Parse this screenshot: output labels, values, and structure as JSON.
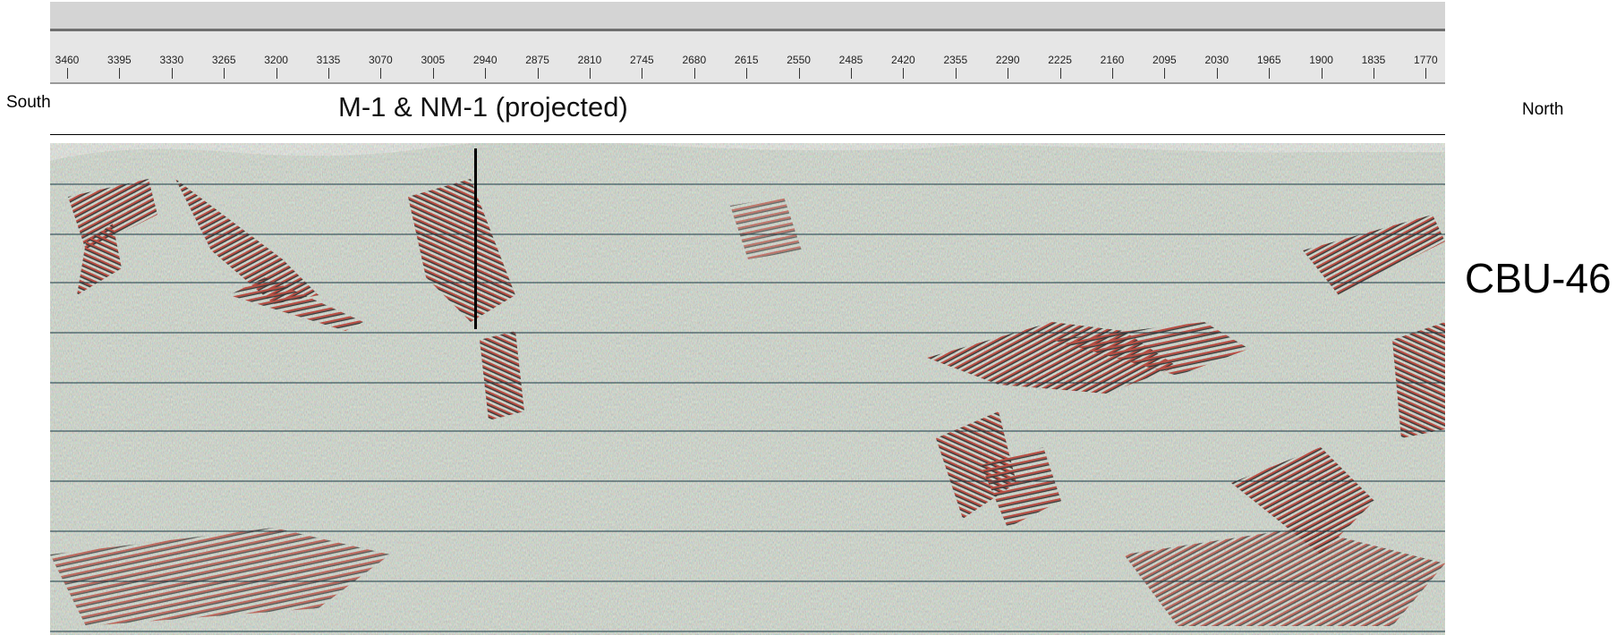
{
  "section": {
    "left_label": "South",
    "right_label": "North",
    "well_label": "M-1 & NM-1 (projected)",
    "profile_label": "CBU-46"
  },
  "ruler": {
    "ticks": [
      "3460",
      "3395",
      "3330",
      "3265",
      "3200",
      "3135",
      "3070",
      "3005",
      "2940",
      "2875",
      "2810",
      "2745",
      "2680",
      "2615",
      "2550",
      "2485",
      "2420",
      "2355",
      "2290",
      "2225",
      "2160",
      "2095",
      "2030",
      "1965",
      "1900",
      "1835",
      "1770"
    ]
  },
  "colors": {
    "background": "#ffffff",
    "header": "#d4d4d4",
    "ruler": "#e6e6e6",
    "seismic_base": "#c9d6c8",
    "seismic_positive": "#b5362b",
    "seismic_negative": "#1e1e1e",
    "timing_lines": "#1a3a45"
  }
}
